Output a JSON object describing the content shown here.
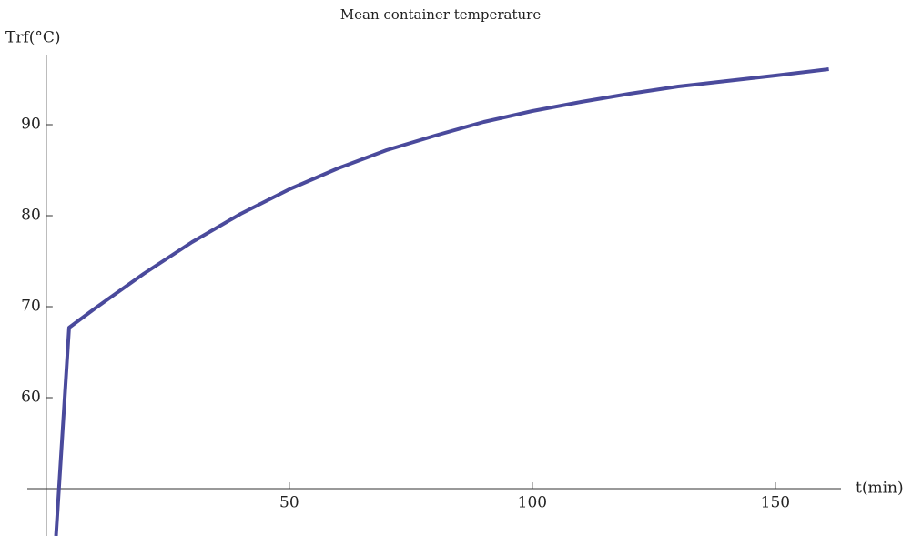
{
  "chart_data": {
    "type": "line",
    "title": "Mean container temperature",
    "x_label": "t(min)",
    "y_label": "Trf(°C)",
    "x": [
      2,
      4.7,
      10,
      20,
      30,
      40,
      50,
      60,
      70,
      80,
      90,
      100,
      110,
      120,
      130,
      140,
      150,
      161
    ],
    "series": [
      {
        "name": "Trf",
        "color": "#4a4a9c",
        "values": [
          44.8,
          67.7,
          69.8,
          73.6,
          77.1,
          80.2,
          82.9,
          85.2,
          87.2,
          88.8,
          90.3,
          91.5,
          92.5,
          93.4,
          94.2,
          94.8,
          95.4,
          96.1
        ]
      }
    ],
    "xlim": [
      -3.9,
      163.5
    ],
    "ylim": [
      44.8,
      97.7
    ],
    "xticks": [
      50,
      100,
      150
    ],
    "yticks": [
      60,
      70,
      80,
      90
    ],
    "origin": [
      0,
      50
    ]
  }
}
